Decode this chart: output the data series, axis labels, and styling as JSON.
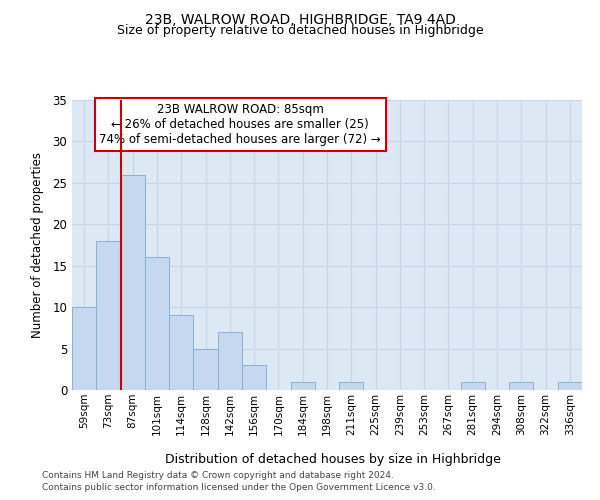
{
  "title1": "23B, WALROW ROAD, HIGHBRIDGE, TA9 4AD",
  "title2": "Size of property relative to detached houses in Highbridge",
  "xlabel": "Distribution of detached houses by size in Highbridge",
  "ylabel": "Number of detached properties",
  "categories": [
    "59sqm",
    "73sqm",
    "87sqm",
    "101sqm",
    "114sqm",
    "128sqm",
    "142sqm",
    "156sqm",
    "170sqm",
    "184sqm",
    "198sqm",
    "211sqm",
    "225sqm",
    "239sqm",
    "253sqm",
    "267sqm",
    "281sqm",
    "294sqm",
    "308sqm",
    "322sqm",
    "336sqm"
  ],
  "values": [
    10,
    18,
    26,
    16,
    9,
    5,
    7,
    3,
    0,
    1,
    0,
    1,
    0,
    0,
    0,
    0,
    1,
    0,
    1,
    0,
    1
  ],
  "bar_color": "#c5d8f0",
  "bar_edge_color": "#8ab0d0",
  "subject_line_index": 2,
  "subject_line_color": "#cc0000",
  "annotation_text": "23B WALROW ROAD: 85sqm\n← 26% of detached houses are smaller (25)\n74% of semi-detached houses are larger (72) →",
  "annotation_box_color": "#ffffff",
  "annotation_box_edge": "#cc0000",
  "ylim": [
    0,
    35
  ],
  "yticks": [
    0,
    5,
    10,
    15,
    20,
    25,
    30,
    35
  ],
  "grid_color": "#c8d4e8",
  "bg_color": "#dde8f5",
  "footer1": "Contains HM Land Registry data © Crown copyright and database right 2024.",
  "footer2": "Contains public sector information licensed under the Open Government Licence v3.0."
}
